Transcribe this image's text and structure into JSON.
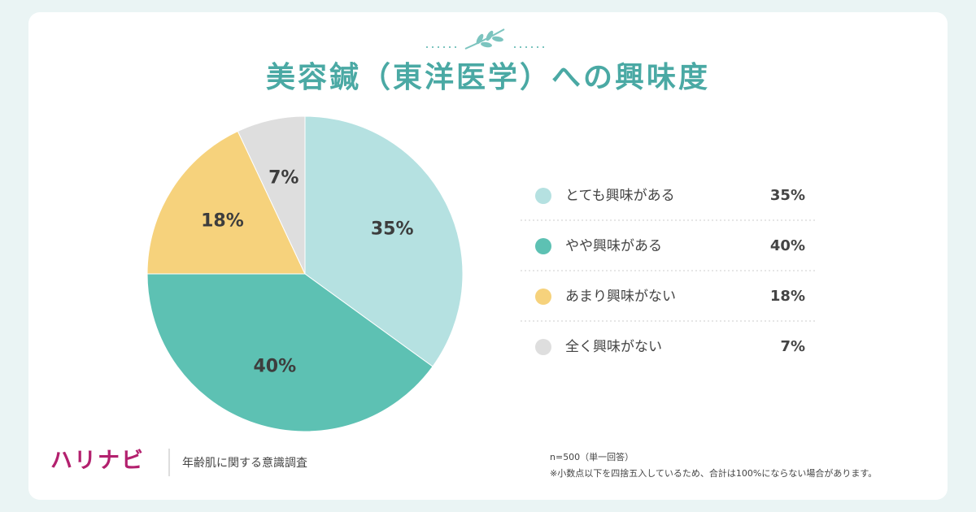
{
  "chart_data": {
    "type": "pie",
    "title": "美容鍼（東洋医学）への興味度",
    "categories": [
      "とても興味がある",
      "やや興味がある",
      "あまり興味がない",
      "全く興味がない"
    ],
    "values": [
      35,
      40,
      18,
      7
    ],
    "value_labels": [
      "35%",
      "40%",
      "18%",
      "7%"
    ],
    "colors": [
      "#b5e1e1",
      "#5dc1b3",
      "#f6d27c",
      "#dedede"
    ]
  },
  "footer": {
    "brand": "ハリナビ",
    "survey": "年齢肌に関する意識調査",
    "sample": "n=500（単一回答）",
    "note": "※小数点以下を四捨五入しているため、合計は100%にならない場合があります。"
  }
}
